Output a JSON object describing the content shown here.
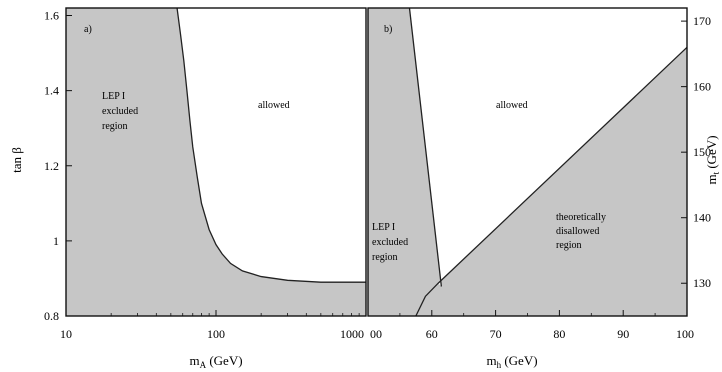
{
  "chart_data": [
    {
      "type": "area",
      "panel_label": "a)",
      "xscale": "log",
      "xlim": [
        10,
        1000
      ],
      "ylim": [
        0.8,
        1.62
      ],
      "xticks": [
        10,
        100,
        1000
      ],
      "xticklabels": [
        "10",
        "100",
        "1000"
      ],
      "yticks": [
        0.8,
        1,
        1.2,
        1.4,
        1.6
      ],
      "yticklabels": [
        "0.8",
        "1",
        "1.2",
        "1.4",
        "1.6"
      ],
      "xlabel_main": "m",
      "xlabel_sub": "A",
      "xlabel_unit": " (GeV)",
      "ylabel_main": "tan β",
      "boundary": {
        "x": [
          55,
          58,
          61,
          64,
          67,
          70,
          75,
          80,
          90,
          100,
          110,
          125,
          150,
          200,
          300,
          500,
          1000
        ],
        "y": [
          1.62,
          1.55,
          1.48,
          1.4,
          1.32,
          1.25,
          1.17,
          1.1,
          1.03,
          0.99,
          0.965,
          0.94,
          0.92,
          0.905,
          0.895,
          0.89,
          0.89
        ]
      },
      "regions": [
        {
          "name": "excluded",
          "lines": [
            "LEP I",
            "excluded",
            "region"
          ]
        },
        {
          "name": "allowed",
          "lines": [
            "allowed"
          ]
        }
      ],
      "colors": {
        "excluded": "#c6c6c6",
        "allowed": "#ffffff"
      }
    },
    {
      "type": "area",
      "panel_label": "b)",
      "xlim": [
        50,
        100
      ],
      "ylim": [
        125,
        172
      ],
      "xticks": [
        60,
        70,
        80,
        90,
        100
      ],
      "xticklabels": [
        "60",
        "70",
        "80",
        "90",
        "100"
      ],
      "xfirst_label": "00",
      "yticks": [
        130,
        140,
        150,
        160,
        170
      ],
      "yticklabels": [
        "130",
        "140",
        "150",
        "160",
        "170"
      ],
      "xlabel_main": "m",
      "xlabel_sub": "h",
      "xlabel_unit": " (GeV)",
      "ylabel_main": "m",
      "ylabel_sub": "t",
      "ylabel_unit": " (GeV)",
      "lep_boundary": {
        "x": [
          56.5,
          61.5
        ],
        "y": [
          172,
          129.5
        ]
      },
      "theory_boundary": {
        "x": [
          57.5,
          59,
          61,
          100
        ],
        "y": [
          125,
          128,
          130,
          166
        ]
      },
      "regions": [
        {
          "name": "lep-excluded",
          "lines": [
            "LEP I",
            "excluded",
            "region"
          ]
        },
        {
          "name": "allowed",
          "lines": [
            "allowed"
          ]
        },
        {
          "name": "theoretically-disallowed",
          "lines": [
            "theoretically",
            "disallowed",
            "region"
          ]
        }
      ],
      "colors": {
        "excluded": "#c6c6c6",
        "allowed": "#ffffff"
      }
    }
  ]
}
